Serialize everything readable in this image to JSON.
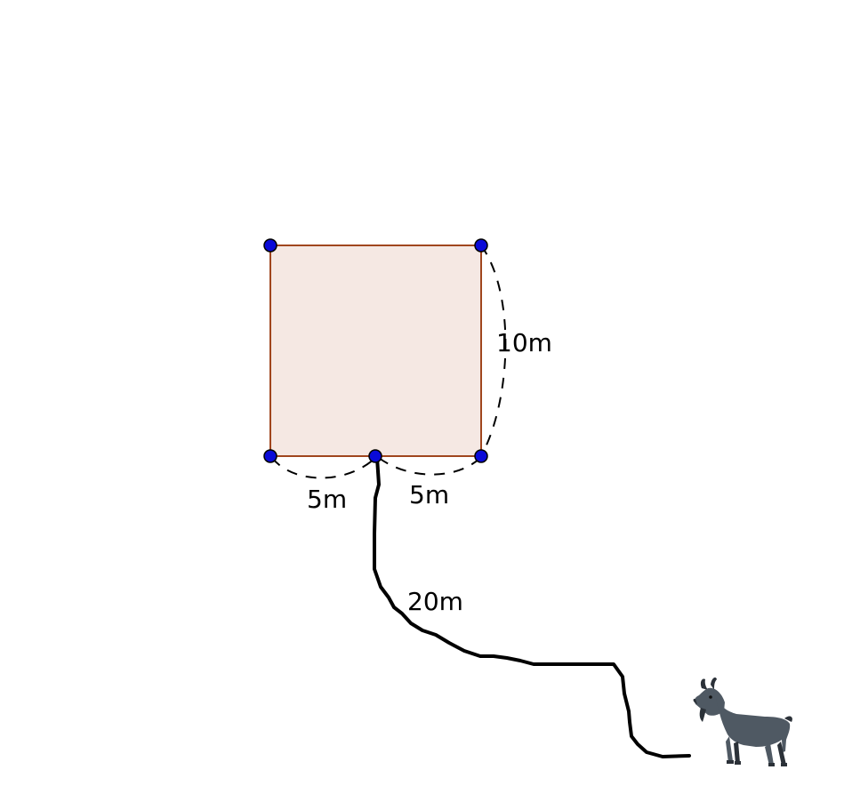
{
  "colors": {
    "square_fill": "#f5e8e3",
    "square_stroke": "#a0461e",
    "vertex_fill": "#0a0ad8",
    "vertex_stroke": "#000000",
    "rope": "#000000",
    "dashed": "#000000",
    "goat_body": "#4f5963",
    "goat_shadow": "#2b3138"
  },
  "labels": {
    "side_right": "10m",
    "bottom_left": "5m",
    "bottom_right": "5m",
    "rope_length": "20m"
  },
  "icons": {
    "goat": "goat-icon"
  }
}
